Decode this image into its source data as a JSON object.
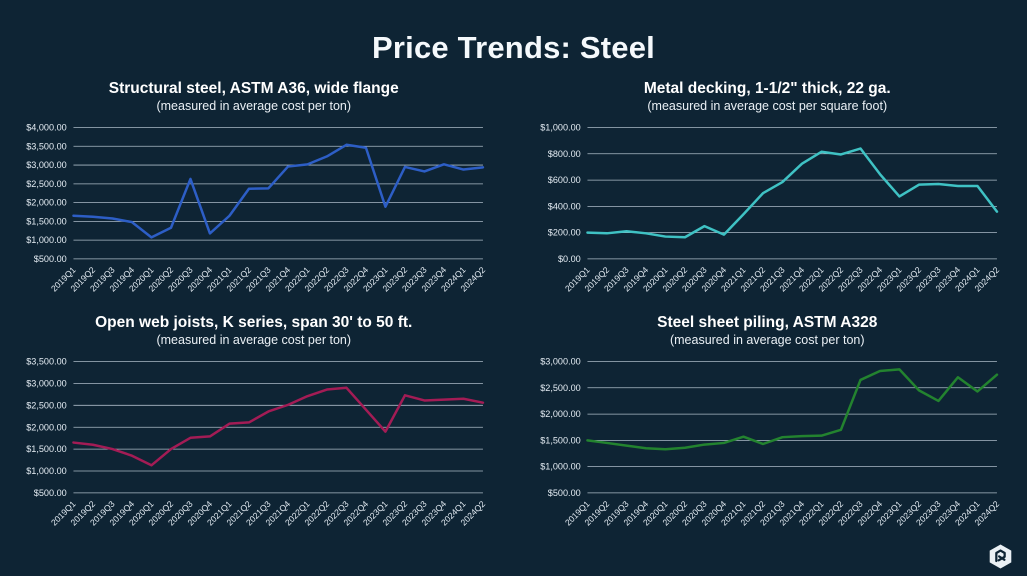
{
  "page": {
    "title": "Price Trends: Steel"
  },
  "colors": {
    "background": "#0e2434",
    "grid": "#c7d5e0",
    "axis_text": "#e4ecf3",
    "title_text": "#f5f9fc",
    "structural_steel_line": "#2d5ec6",
    "metal_decking_line": "#3fc2c4",
    "open_web_joists_line": "#a31c55",
    "sheet_piling_line": "#23832f"
  },
  "footer": {
    "logo_icon": "hexagon-brand-mark"
  },
  "chart_data": [
    {
      "type": "line",
      "title": "Structural steel, ASTM A36, wide flange",
      "subtitle": "(measured in average cost per ton)",
      "line_color": "#2d5ec6",
      "legend_position": "none",
      "grid": "horizontal",
      "ylim": [
        500,
        4000
      ],
      "y_ticks": [
        "$4,000.00",
        "$3,500.00",
        "$3,000.00",
        "$2,500.00",
        "$2,000.00",
        "$1,500.00",
        "$1,000.00",
        "$500.00"
      ],
      "categories": [
        "2019Q1",
        "2019Q2",
        "2019Q3",
        "2019Q4",
        "2020Q1",
        "2020Q2",
        "2020Q3",
        "2020Q4",
        "2021Q1",
        "2021Q2",
        "2021Q3",
        "2021Q4",
        "2022Q1",
        "2022Q2",
        "2022Q3",
        "2022Q4",
        "2023Q1",
        "2023Q2",
        "2023Q3",
        "2023Q4",
        "2024Q1",
        "2024Q2"
      ],
      "values": [
        1650,
        1625,
        1575,
        1480,
        1075,
        1330,
        2630,
        1180,
        1650,
        2370,
        2380,
        2960,
        3020,
        3230,
        3540,
        3460,
        1890,
        2950,
        2830,
        3020,
        2880,
        2940
      ]
    },
    {
      "type": "line",
      "title": "Metal decking, 1-1/2\" thick, 22 ga.",
      "subtitle": "(measured in average cost per square foot)",
      "line_color": "#3fc2c4",
      "legend_position": "none",
      "grid": "horizontal",
      "ylim": [
        0,
        1000
      ],
      "y_ticks": [
        "$1,000.00",
        "$800.00",
        "$600.00",
        "$400.00",
        "$200.00",
        "$0.00"
      ],
      "categories": [
        "2019Q1",
        "2019Q2",
        "2019Q3",
        "2019Q4",
        "2020Q1",
        "2020Q2",
        "2020Q3",
        "2020Q4",
        "2021Q1",
        "2021Q2",
        "2021Q3",
        "2021Q4",
        "2022Q1",
        "2022Q2",
        "2022Q3",
        "2022Q4",
        "2023Q1",
        "2023Q2",
        "2023Q3",
        "2023Q4",
        "2024Q1",
        "2024Q2"
      ],
      "values": [
        200,
        195,
        210,
        195,
        170,
        165,
        250,
        185,
        340,
        500,
        585,
        725,
        815,
        795,
        840,
        645,
        475,
        565,
        570,
        555,
        555,
        360
      ]
    },
    {
      "type": "line",
      "title": "Open web joists, K series, span 30' to 50 ft.",
      "subtitle": "(measured in average cost per ton)",
      "line_color": "#a31c55",
      "legend_position": "none",
      "grid": "horizontal",
      "ylim": [
        500,
        3500
      ],
      "y_ticks": [
        "$3,500.00",
        "$3,000.00",
        "$2,500.00",
        "$2,000.00",
        "$1,500.00",
        "$1,000.00",
        "$500.00"
      ],
      "categories": [
        "2019Q1",
        "2019Q2",
        "2019Q3",
        "2019Q4",
        "2020Q1",
        "2020Q2",
        "2020Q3",
        "2020Q4",
        "2021Q1",
        "2021Q2",
        "2021Q3",
        "2021Q4",
        "2022Q1",
        "2022Q2",
        "2022Q3",
        "2022Q4",
        "2023Q1",
        "2023Q2",
        "2023Q3",
        "2023Q4",
        "2024Q1",
        "2024Q2"
      ],
      "values": [
        1650,
        1600,
        1500,
        1350,
        1130,
        1500,
        1760,
        1790,
        2080,
        2110,
        2360,
        2510,
        2710,
        2860,
        2900,
        2400,
        1900,
        2730,
        2610,
        2630,
        2650,
        2560
      ]
    },
    {
      "type": "line",
      "title": "Steel sheet piling, ASTM A328",
      "subtitle": "(measured in average cost per ton)",
      "line_color": "#23832f",
      "legend_position": "none",
      "grid": "horizontal",
      "ylim": [
        500,
        3000
      ],
      "y_ticks": [
        "$3,000.00",
        "$2,500.00",
        "$2,000.00",
        "$1,500.00",
        "$1,000.00",
        "$500.00"
      ],
      "categories": [
        "2019Q1",
        "2019Q2",
        "2019Q3",
        "2019Q4",
        "2020Q1",
        "2020Q2",
        "2020Q3",
        "2020Q4",
        "2021Q1",
        "2021Q2",
        "2021Q3",
        "2021Q4",
        "2022Q1",
        "2022Q2",
        "2022Q3",
        "2022Q4",
        "2023Q1",
        "2023Q2",
        "2023Q3",
        "2023Q4",
        "2024Q1",
        "2024Q2"
      ],
      "values": [
        1500,
        1450,
        1400,
        1350,
        1330,
        1360,
        1420,
        1450,
        1570,
        1430,
        1560,
        1580,
        1590,
        1700,
        2650,
        2820,
        2850,
        2450,
        2250,
        2700,
        2430,
        2750
      ]
    }
  ]
}
